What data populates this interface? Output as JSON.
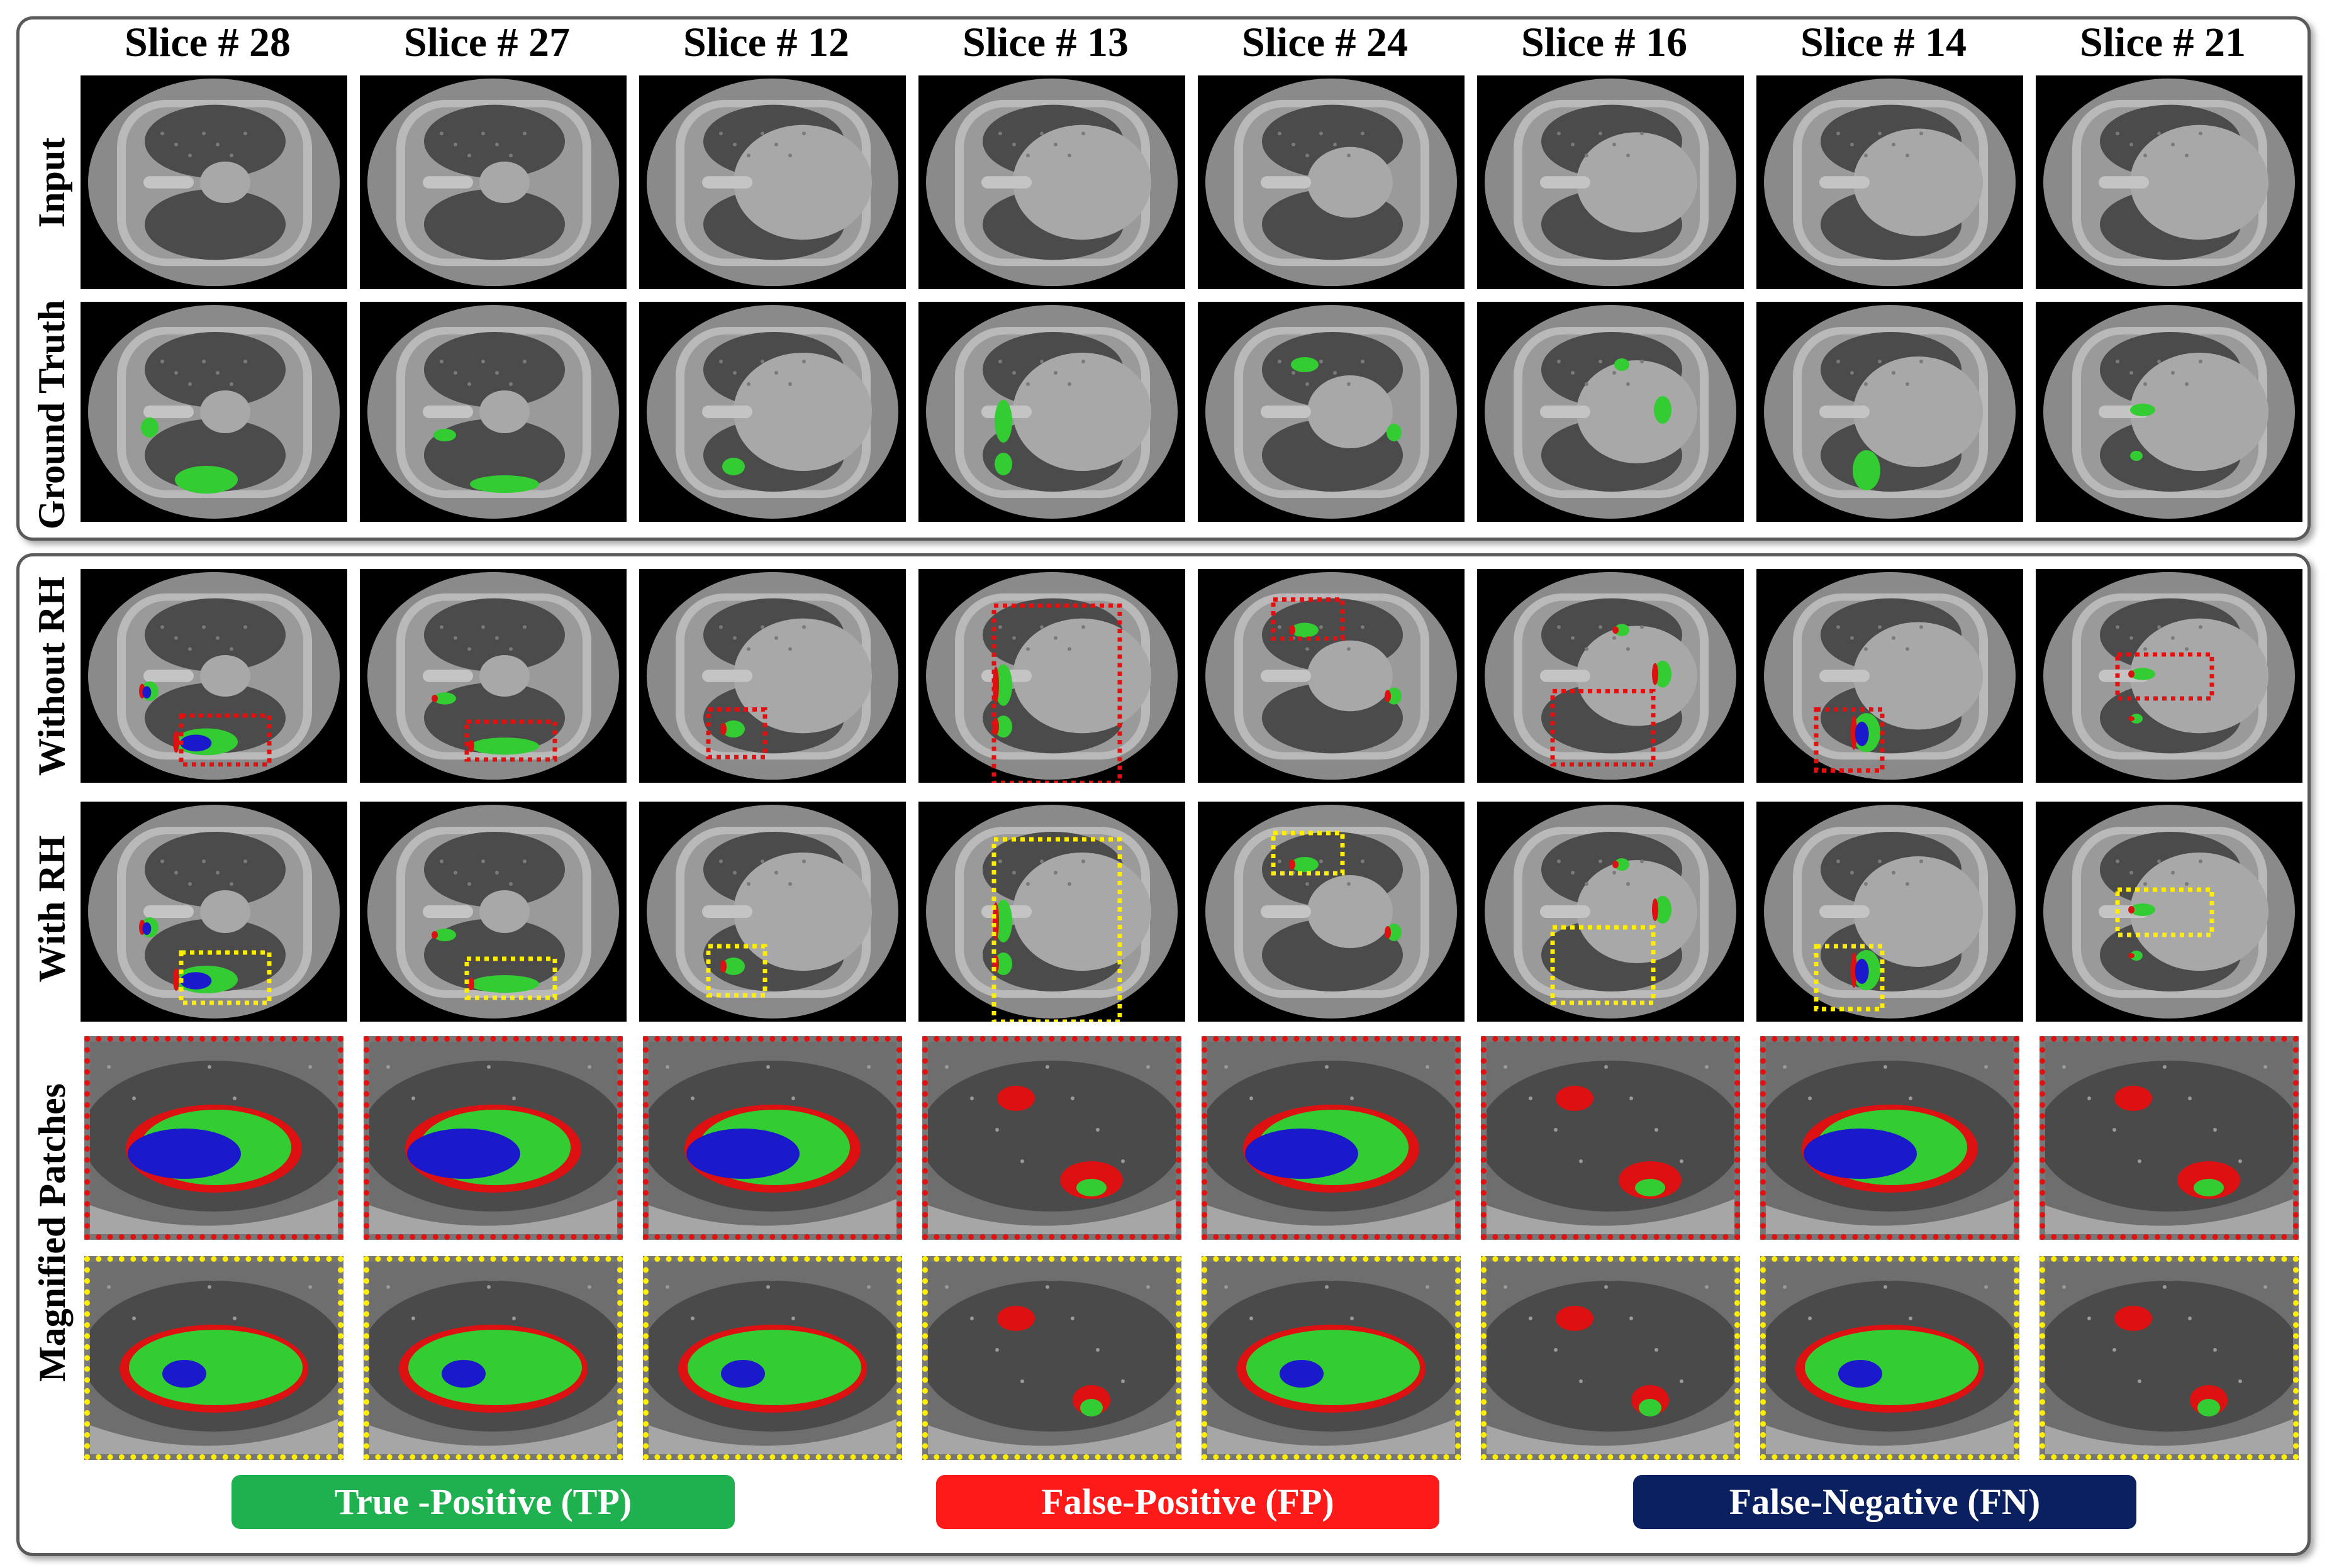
{
  "columns": [
    "Slice # 28",
    "Slice # 27",
    "Slice # 12",
    "Slice # 13",
    "Slice # 24",
    "Slice # 16",
    "Slice # 14",
    "Slice # 21"
  ],
  "rows": {
    "input": "Input",
    "ground_truth": "Ground Truth",
    "without_rh": "Without RH",
    "with_rh": "With RH",
    "magnified": "Magnified Patches"
  },
  "legend": [
    {
      "label": "True -Positive (TP)",
      "color": "#1fb050"
    },
    {
      "label": "False-Positive (FP)",
      "color": "#ff1a1a"
    },
    {
      "label": "False-Negative (FN)",
      "color": "#0a2060"
    }
  ],
  "colors": {
    "true_positive": "#33cc33",
    "false_positive": "#dd1111",
    "false_negative": "#1a1acc",
    "box_without_rh": "#e31010",
    "box_with_rh": "#ffee00"
  }
}
